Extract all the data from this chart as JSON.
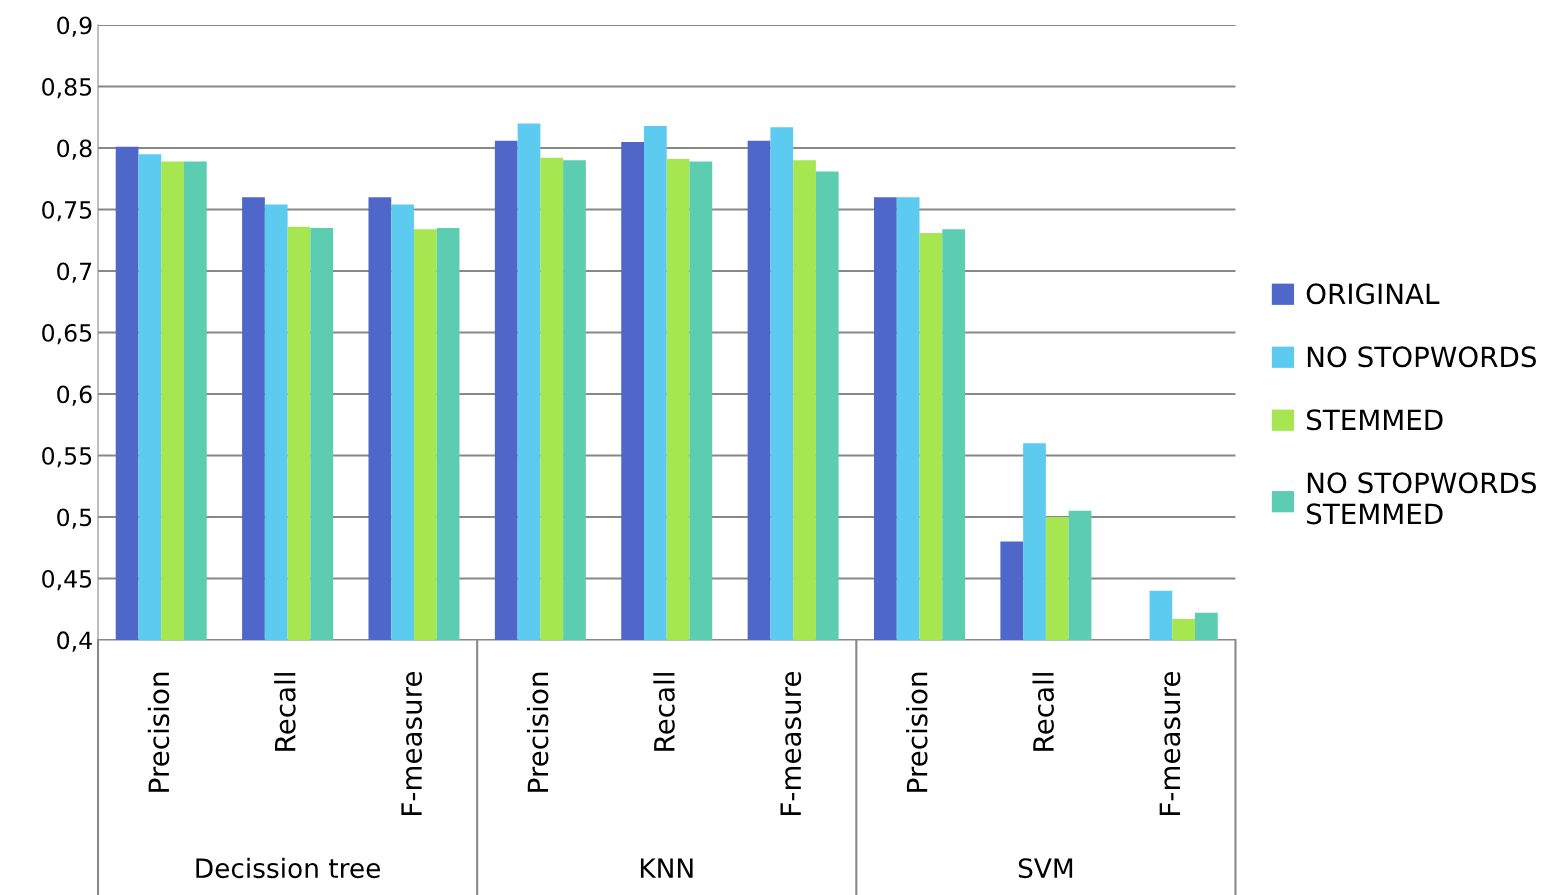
{
  "chart_data": {
    "type": "bar",
    "categories": [
      "Precision",
      "Recall",
      "F-measure",
      "Precision",
      "Recall",
      "F-measure",
      "Precision",
      "Recall",
      "F-measure"
    ],
    "annotations": [
      "Decission tree",
      "KNN",
      "SVM"
    ],
    "series": [
      {
        "name": "ORIGINAL",
        "color": "#4f67c8",
        "values": [
          0.801,
          0.76,
          0.76,
          0.806,
          0.805,
          0.806,
          0.76,
          0.48,
          null
        ]
      },
      {
        "name": "NO STOPWORDS",
        "color": "#5dcbf0",
        "values": [
          0.795,
          0.754,
          0.754,
          0.82,
          0.818,
          0.817,
          0.76,
          0.56,
          0.44
        ]
      },
      {
        "name": "STEMMED",
        "color": "#a6e651",
        "values": [
          0.789,
          0.736,
          0.734,
          0.792,
          0.791,
          0.79,
          0.731,
          0.5,
          0.417
        ]
      },
      {
        "name": "NO STOPWORDS\nSTEMMED",
        "color": "#5ccdb0",
        "values": [
          0.789,
          0.735,
          0.735,
          0.79,
          0.789,
          0.781,
          0.734,
          0.505,
          0.422
        ]
      }
    ],
    "ylim": [
      0.4,
      0.9
    ],
    "yticks": [
      {
        "value": 0.4,
        "label": "0,4"
      },
      {
        "value": 0.45,
        "label": "0,45"
      },
      {
        "value": 0.5,
        "label": "0,5"
      },
      {
        "value": 0.55,
        "label": "0,55"
      },
      {
        "value": 0.6,
        "label": "0,6"
      },
      {
        "value": 0.65,
        "label": "0,65"
      },
      {
        "value": 0.7,
        "label": "0,7"
      },
      {
        "value": 0.75,
        "label": "0,75"
      },
      {
        "value": 0.8,
        "label": "0,8"
      },
      {
        "value": 0.85,
        "label": "0,85"
      },
      {
        "value": 0.9,
        "label": "0,9"
      }
    ],
    "grid": "y",
    "legend": "right"
  }
}
